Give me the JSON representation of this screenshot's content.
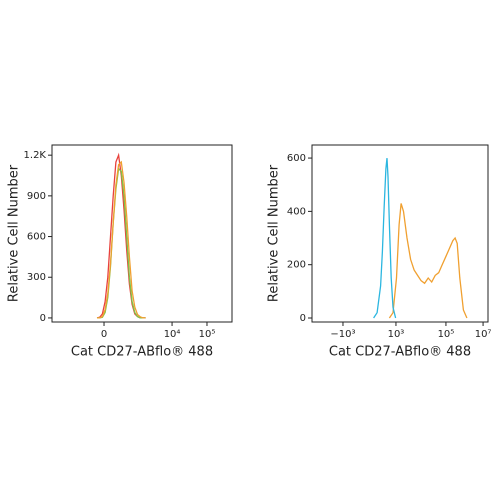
{
  "chart_data": [
    {
      "type": "line",
      "x_label": "Cat CD27-ABflo® 488",
      "y_label": "Relative Cell Number",
      "x": [
        250,
        265,
        280,
        295,
        310,
        325,
        340,
        355,
        370,
        385,
        400,
        415,
        430,
        445,
        460,
        475,
        490,
        505,
        520
      ],
      "series": [
        {
          "color": "#e8413c",
          "values": [
            0,
            5,
            30,
            120,
            300,
            600,
            900,
            1150,
            1200,
            1050,
            800,
            500,
            250,
            100,
            30,
            10,
            0,
            0,
            0
          ]
        },
        {
          "color": "#7cc44a",
          "values": [
            0,
            0,
            5,
            40,
            150,
            380,
            700,
            950,
            1100,
            1080,
            900,
            600,
            300,
            120,
            40,
            10,
            0,
            0,
            0
          ]
        },
        {
          "color": "#f0a030",
          "values": [
            0,
            0,
            10,
            60,
            180,
            400,
            700,
            980,
            1130,
            1150,
            1000,
            750,
            450,
            200,
            80,
            25,
            8,
            0,
            0
          ]
        }
      ],
      "xlim": [
        0,
        1000
      ],
      "xticks": [
        {
          "value": 289,
          "label": "0"
        },
        {
          "value": 667,
          "label": "10⁴"
        },
        {
          "value": 861,
          "label": "10⁵"
        }
      ],
      "ylim": [
        -30,
        1275
      ],
      "yticks": [
        0,
        300,
        600,
        900,
        {
          "value": 1200,
          "label": "1.2K"
        }
      ]
    },
    {
      "type": "line",
      "x_label": "Cat CD27-ABflo® 488",
      "y_label": "Relative Cell Number",
      "series": [
        {
          "color": "#f0a030",
          "x": [
            440,
            460,
            480,
            495,
            506,
            520,
            540,
            560,
            580,
            600,
            620,
            640,
            660,
            680,
            700,
            720,
            740,
            760,
            780,
            800,
            813,
            825,
            840,
            860,
            880
          ],
          "values": [
            0,
            20,
            150,
            350,
            430,
            400,
            300,
            220,
            180,
            160,
            140,
            130,
            150,
            135,
            160,
            170,
            200,
            230,
            260,
            290,
            300,
            280,
            150,
            30,
            0
          ]
        },
        {
          "color": "#2bb6e0",
          "x": [
            350,
            370,
            390,
            400,
            410,
            420,
            426,
            432,
            440,
            450,
            460,
            475
          ],
          "values": [
            0,
            20,
            120,
            250,
            420,
            560,
            600,
            530,
            350,
            150,
            40,
            0
          ]
        }
      ],
      "xlim": [
        0,
        1000
      ],
      "xticks": [
        {
          "value": 176,
          "label": "−10³"
        },
        {
          "value": 477,
          "label": "10³"
        },
        {
          "value": 761,
          "label": "10⁵"
        },
        {
          "value": 972,
          "label": "10⁷"
        }
      ],
      "ylim": [
        -15,
        649
      ],
      "yticks": [
        0,
        200,
        400,
        600
      ]
    }
  ]
}
